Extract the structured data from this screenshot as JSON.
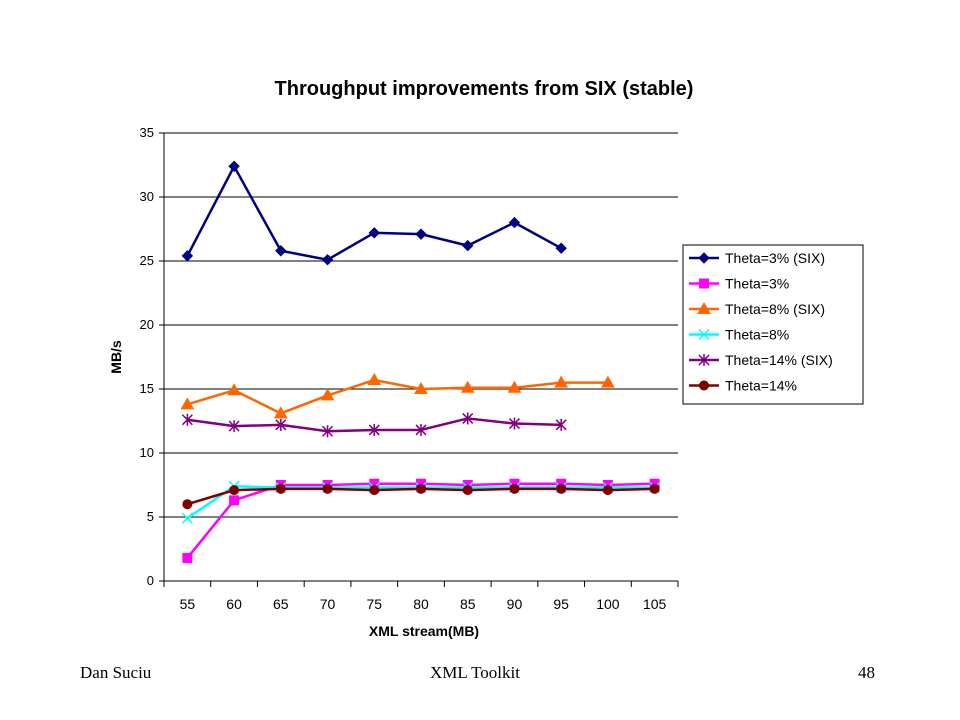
{
  "chart_data": {
    "type": "line",
    "title": "Throughput improvements from SIX (stable)",
    "xlabel": "XML stream(MB)",
    "ylabel": "MB/s",
    "ylim": [
      0,
      35
    ],
    "yticks": [
      0,
      5,
      10,
      15,
      20,
      25,
      30,
      35
    ],
    "categories": [
      "55",
      "60",
      "65",
      "70",
      "75",
      "80",
      "85",
      "90",
      "95",
      "100",
      "105"
    ],
    "grid": "horizontal",
    "legend_position": "right",
    "series": [
      {
        "name": "Theta=3% (SIX)",
        "color": "#000080",
        "marker": "diamond",
        "values": [
          25.4,
          32.4,
          25.8,
          25.1,
          27.2,
          27.1,
          26.2,
          28.0,
          26.0,
          null,
          null
        ]
      },
      {
        "name": "Theta=3%",
        "color": "#ff00ff",
        "marker": "square",
        "values": [
          1.8,
          6.3,
          7.5,
          7.5,
          7.6,
          7.6,
          7.5,
          7.6,
          7.6,
          7.5,
          7.6
        ]
      },
      {
        "name": "Theta=8% (SIX)",
        "color": "#ff6600",
        "marker": "triangle",
        "values": [
          13.8,
          14.9,
          13.1,
          14.5,
          15.7,
          15.0,
          15.1,
          15.1,
          15.5,
          15.5,
          null
        ]
      },
      {
        "name": "Theta=8%",
        "color": "#00ffff",
        "marker": "x",
        "values": [
          4.9,
          7.4,
          7.3,
          7.3,
          7.3,
          7.3,
          7.3,
          7.3,
          7.3,
          7.3,
          7.3
        ]
      },
      {
        "name": "Theta=14% (SIX)",
        "color": "#800080",
        "marker": "star",
        "values": [
          12.6,
          12.1,
          12.2,
          11.7,
          11.8,
          11.8,
          12.7,
          12.3,
          12.2,
          null,
          null
        ]
      },
      {
        "name": "Theta=14%",
        "color": "#800000",
        "marker": "circle",
        "values": [
          6.0,
          7.1,
          7.2,
          7.2,
          7.1,
          7.2,
          7.1,
          7.2,
          7.2,
          7.1,
          7.2
        ]
      }
    ]
  },
  "footer": {
    "author": "Dan Suciu",
    "title": "XML Toolkit",
    "page": "48"
  }
}
